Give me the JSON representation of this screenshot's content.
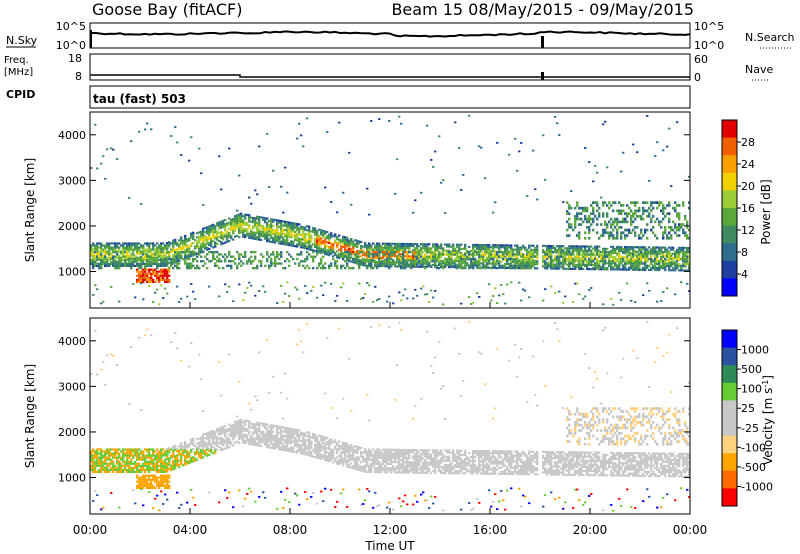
{
  "header": {
    "station": "Goose Bay (fitACF)",
    "beam_info": "Beam 15 08/May/2015 - 09/May/2015"
  },
  "nsky_panel": {
    "left_label": "N.Sky",
    "left_ticks": [
      "10^5",
      "10^0"
    ],
    "right_label": "N.Search",
    "right_ticks": [
      "10^5",
      "10^0"
    ]
  },
  "freq_panel": {
    "left_label_1": "Freq.",
    "left_label_2": "[MHz]",
    "left_ticks": [
      "18",
      "8"
    ],
    "right_label": "Nave",
    "right_ticks": [
      "60",
      "0"
    ]
  },
  "cpid": {
    "label": "CPID",
    "value": "tau (fast) 503"
  },
  "colors": {
    "power_scale": [
      "#0000ff",
      "#1e3fa0",
      "#2f6d8e",
      "#3f8a5e",
      "#5aa83c",
      "#9ccc3a",
      "#f0d000",
      "#f8a000",
      "#f06000",
      "#e00000"
    ],
    "velocity_scale": [
      "#ff0000",
      "#ff6a00",
      "#ffa500",
      "#ffd280",
      "#c8c8c8",
      "#c8c8c8",
      "#66cc33",
      "#2e8b57",
      "#2a52a0",
      "#0000ff"
    ]
  },
  "chart_data": [
    {
      "type": "heatmap",
      "name": "power",
      "ylabel": "Slant Range [km]",
      "y_ticks": [
        "4000",
        "3000",
        "2000",
        "1000"
      ],
      "ylim": [
        200,
        4500
      ],
      "xlim": [
        "00:00",
        "24:00"
      ],
      "colorbar": {
        "label": "Power [dB]",
        "tick_labels": [
          "28",
          "24",
          "20",
          "16",
          "12",
          "8",
          "4"
        ],
        "range": [
          0,
          32
        ]
      },
      "echo_bands": [
        {
          "region": "main scatter",
          "time_start_h": 0,
          "time_end_h": 24,
          "range_km": [
            1100,
            1700
          ],
          "power_db": 14
        },
        {
          "region": "arc",
          "time_start_h": 3,
          "time_end_h": 10,
          "range_km": [
            1600,
            2200
          ],
          "power_db": 22
        },
        {
          "region": "strong patch",
          "time_start_h": 2,
          "time_end_h": 3,
          "range_km": [
            700,
            1000
          ],
          "power_db": 30
        }
      ]
    },
    {
      "type": "heatmap",
      "name": "velocity",
      "ylabel": "Slant Range [km]",
      "y_ticks": [
        "4000",
        "3000",
        "2000",
        "1000"
      ],
      "ylim": [
        200,
        4500
      ],
      "xlim": [
        "00:00",
        "24:00"
      ],
      "x_ticks": [
        "00:00",
        "04:00",
        "08:00",
        "12:00",
        "16:00",
        "20:00",
        "00:00"
      ],
      "xlabel": "Time UT",
      "colorbar": {
        "label": "Velocity [m s^-1]",
        "tick_labels": [
          "1000",
          "500",
          "100",
          "25",
          "-25",
          "-100",
          "-500",
          "-1000"
        ],
        "range": [
          -1500,
          1500
        ]
      }
    }
  ]
}
